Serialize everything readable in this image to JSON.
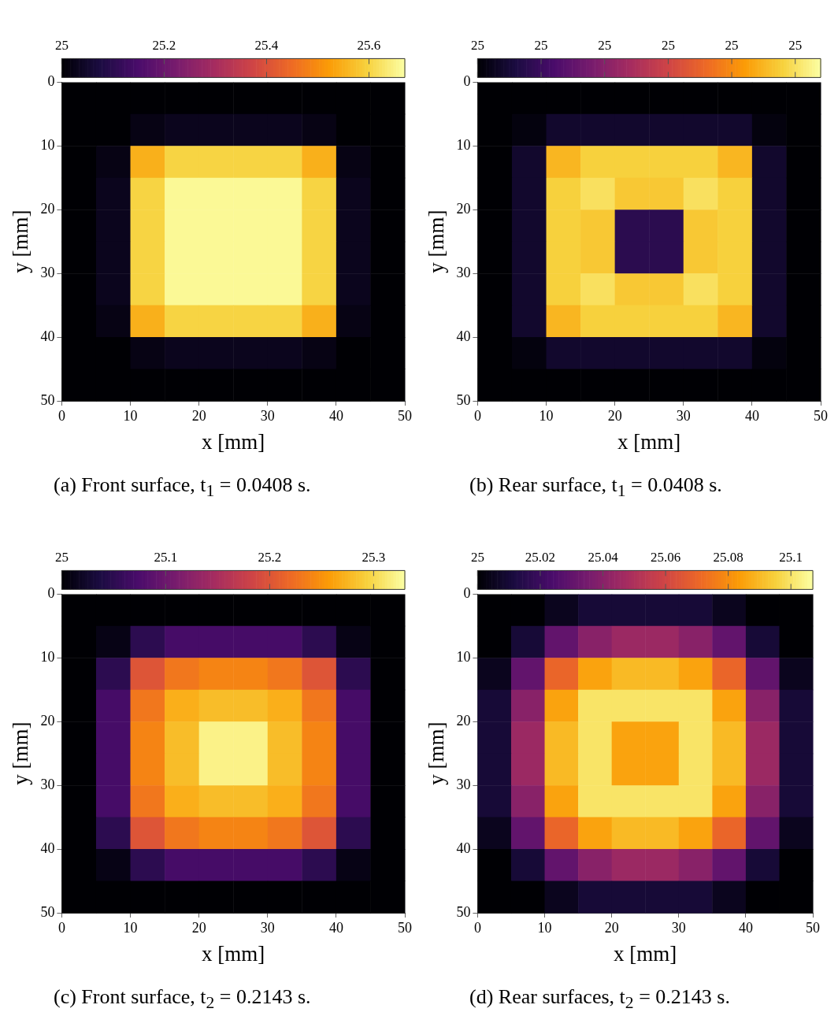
{
  "chart_data": [
    {
      "type": "heatmap",
      "title": "(a) Front surface, t$_{1}$ = 0.0408 s.",
      "xlabel": "x [mm]",
      "ylabel": "y [mm]",
      "xlim": [
        0,
        50
      ],
      "xticks": [
        0,
        10,
        20,
        30,
        40,
        50
      ],
      "ylim": [
        50,
        0
      ],
      "yticks": [
        0,
        10,
        20,
        30,
        40,
        50
      ],
      "clim": [
        25,
        25.67
      ],
      "cticks": [
        25,
        25.2,
        25.4,
        25.6
      ],
      "cells": [
        [
          25,
          25,
          25,
          25,
          25,
          25,
          25,
          25,
          25,
          25
        ],
        [
          25,
          25,
          25.02,
          25.03,
          25.03,
          25.03,
          25.03,
          25.02,
          25,
          25
        ],
        [
          25,
          25.02,
          25.55,
          25.6,
          25.6,
          25.6,
          25.6,
          25.55,
          25.02,
          25
        ],
        [
          25,
          25.03,
          25.6,
          25.66,
          25.66,
          25.66,
          25.66,
          25.6,
          25.03,
          25
        ],
        [
          25,
          25.03,
          25.6,
          25.66,
          25.66,
          25.66,
          25.66,
          25.6,
          25.03,
          25
        ],
        [
          25,
          25.03,
          25.6,
          25.66,
          25.66,
          25.66,
          25.66,
          25.6,
          25.03,
          25
        ],
        [
          25,
          25.03,
          25.6,
          25.66,
          25.66,
          25.66,
          25.66,
          25.6,
          25.03,
          25
        ],
        [
          25,
          25.02,
          25.55,
          25.6,
          25.6,
          25.6,
          25.6,
          25.55,
          25.02,
          25
        ],
        [
          25,
          25,
          25.02,
          25.03,
          25.03,
          25.03,
          25.03,
          25.02,
          25,
          25
        ],
        [
          25,
          25,
          25,
          25,
          25,
          25,
          25,
          25,
          25,
          25
        ]
      ]
    },
    {
      "type": "heatmap",
      "title": "(b) Rear surface, t$_{1}$ = 0.0408 s.",
      "xlabel": "x [mm]",
      "ylabel": "y [mm]",
      "xlim": [
        0,
        50
      ],
      "xticks": [
        0,
        10,
        20,
        30,
        40,
        50
      ],
      "ylim": [
        50,
        0
      ],
      "yticks": [
        0,
        10,
        20,
        30,
        40,
        50
      ],
      "clim": [
        25,
        25.0054
      ],
      "cticks": [
        {
          "value": 25,
          "label": "25"
        },
        {
          "value": 25.001,
          "label": "25"
        },
        {
          "value": 25.002,
          "label": "25"
        },
        {
          "value": 25.003,
          "label": "25"
        },
        {
          "value": 25.004,
          "label": "25"
        },
        {
          "value": 25.005,
          "label": "25"
        }
      ],
      "cells": [
        [
          25,
          25,
          25,
          25,
          25,
          25,
          25,
          25,
          25,
          25
        ],
        [
          25,
          25.0001,
          25.0004,
          25.0004,
          25.0004,
          25.0004,
          25.0004,
          25.0004,
          25.0001,
          25
        ],
        [
          25,
          25.0004,
          25.0045,
          25.0048,
          25.0048,
          25.0048,
          25.0048,
          25.0045,
          25.0004,
          25
        ],
        [
          25,
          25.0004,
          25.0048,
          25.005,
          25.0047,
          25.0047,
          25.005,
          25.0048,
          25.0004,
          25
        ],
        [
          25,
          25.0004,
          25.0048,
          25.0047,
          25.0008,
          25.0008,
          25.0047,
          25.0048,
          25.0004,
          25
        ],
        [
          25,
          25.0004,
          25.0048,
          25.0047,
          25.0008,
          25.0008,
          25.0047,
          25.0048,
          25.0004,
          25
        ],
        [
          25,
          25.0004,
          25.0048,
          25.005,
          25.0047,
          25.0047,
          25.005,
          25.0048,
          25.0004,
          25
        ],
        [
          25,
          25.0004,
          25.0045,
          25.0048,
          25.0048,
          25.0048,
          25.0048,
          25.0045,
          25.0004,
          25
        ],
        [
          25,
          25.0001,
          25.0004,
          25.0004,
          25.0004,
          25.0004,
          25.0004,
          25.0004,
          25.0001,
          25
        ],
        [
          25,
          25,
          25,
          25,
          25,
          25,
          25,
          25,
          25,
          25
        ]
      ]
    },
    {
      "type": "heatmap",
      "title": "(c) Front surface, t$_{2}$ = 0.2143 s.",
      "xlabel": "x [mm]",
      "ylabel": "y [mm]",
      "xlim": [
        0,
        50
      ],
      "xticks": [
        0,
        10,
        20,
        30,
        40,
        50
      ],
      "ylim": [
        50,
        0
      ],
      "yticks": [
        0,
        10,
        20,
        30,
        40,
        50
      ],
      "clim": [
        25,
        25.33
      ],
      "cticks": [
        25,
        25.1,
        25.2,
        25.3
      ],
      "cells": [
        [
          25,
          25,
          25,
          25,
          25,
          25,
          25,
          25,
          25,
          25
        ],
        [
          25,
          25.01,
          25.05,
          25.07,
          25.07,
          25.07,
          25.07,
          25.05,
          25.01,
          25
        ],
        [
          25,
          25.05,
          25.2,
          25.23,
          25.24,
          25.24,
          25.23,
          25.2,
          25.05,
          25
        ],
        [
          25,
          25.07,
          25.23,
          25.27,
          25.28,
          25.28,
          25.27,
          25.23,
          25.07,
          25
        ],
        [
          25,
          25.07,
          25.24,
          25.28,
          25.32,
          25.32,
          25.28,
          25.24,
          25.07,
          25
        ],
        [
          25,
          25.07,
          25.24,
          25.28,
          25.32,
          25.32,
          25.28,
          25.24,
          25.07,
          25
        ],
        [
          25,
          25.07,
          25.23,
          25.27,
          25.28,
          25.28,
          25.27,
          25.23,
          25.07,
          25
        ],
        [
          25,
          25.05,
          25.2,
          25.23,
          25.24,
          25.24,
          25.23,
          25.2,
          25.05,
          25
        ],
        [
          25,
          25.01,
          25.05,
          25.07,
          25.07,
          25.07,
          25.07,
          25.05,
          25.01,
          25
        ],
        [
          25,
          25,
          25,
          25,
          25,
          25,
          25,
          25,
          25,
          25
        ]
      ]
    },
    {
      "type": "heatmap",
      "title": "(d) Rear surfaces, t$_{2}$ = 0.2143 s.",
      "xlabel": "x [mm]",
      "ylabel": "y [mm]",
      "xlim": [
        0,
        50
      ],
      "xticks": [
        0,
        10,
        20,
        30,
        40,
        50
      ],
      "ylim": [
        50,
        0
      ],
      "yticks": [
        0,
        10,
        20,
        30,
        40,
        50
      ],
      "clim": [
        25,
        25.107
      ],
      "cticks": [
        25,
        25.02,
        25.04,
        25.06,
        25.08,
        25.1
      ],
      "cells": [
        [
          25,
          25,
          25.005,
          25.01,
          25.01,
          25.01,
          25.01,
          25.005,
          25,
          25
        ],
        [
          25,
          25.01,
          25.03,
          25.04,
          25.045,
          25.045,
          25.04,
          25.03,
          25.01,
          25
        ],
        [
          25.005,
          25.03,
          25.07,
          25.085,
          25.09,
          25.09,
          25.085,
          25.07,
          25.03,
          25.005
        ],
        [
          25.01,
          25.04,
          25.085,
          25.1,
          25.1,
          25.1,
          25.1,
          25.085,
          25.04,
          25.01
        ],
        [
          25.01,
          25.045,
          25.09,
          25.1,
          25.085,
          25.085,
          25.1,
          25.09,
          25.045,
          25.01
        ],
        [
          25.01,
          25.045,
          25.09,
          25.1,
          25.085,
          25.085,
          25.1,
          25.09,
          25.045,
          25.01
        ],
        [
          25.01,
          25.04,
          25.085,
          25.1,
          25.1,
          25.1,
          25.1,
          25.085,
          25.04,
          25.01
        ],
        [
          25.005,
          25.03,
          25.07,
          25.085,
          25.09,
          25.09,
          25.085,
          25.07,
          25.03,
          25.005
        ],
        [
          25,
          25.01,
          25.03,
          25.04,
          25.045,
          25.045,
          25.04,
          25.03,
          25.01,
          25
        ],
        [
          25,
          25,
          25.005,
          25.01,
          25.01,
          25.01,
          25.01,
          25.005,
          25,
          25
        ]
      ]
    }
  ]
}
